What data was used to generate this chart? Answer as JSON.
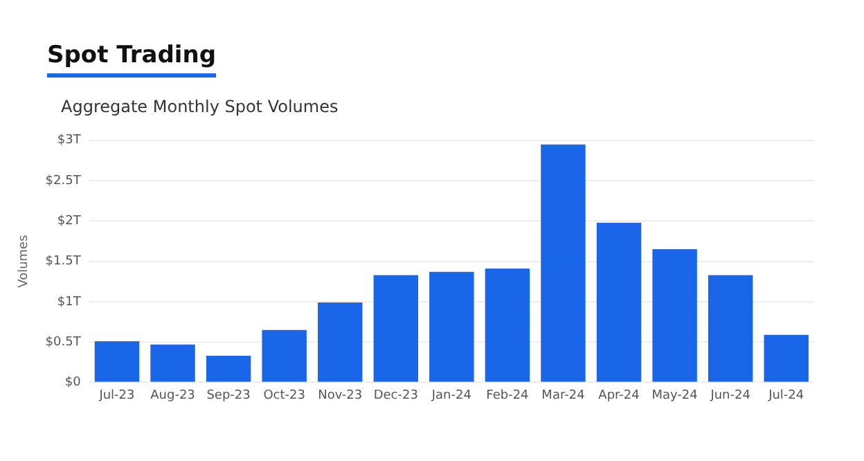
{
  "chart_data": {
    "type": "bar",
    "title": "Spot Trading",
    "subtitle": "Aggregate Monthly Spot Volumes",
    "ylabel": "Volumes",
    "categories": [
      "Jul-23",
      "Aug-23",
      "Sep-23",
      "Oct-23",
      "Nov-23",
      "Dec-23",
      "Jan-24",
      "Feb-24",
      "Mar-24",
      "Apr-24",
      "May-24",
      "Jun-24",
      "Jul-24"
    ],
    "values": [
      0.51,
      0.47,
      0.33,
      0.65,
      0.99,
      1.33,
      1.37,
      1.41,
      2.95,
      1.98,
      1.65,
      1.33,
      0.59
    ],
    "color": "#1a66e8",
    "ylim": [
      0,
      3
    ],
    "yticks": [
      {
        "value": 0,
        "label": "$0"
      },
      {
        "value": 0.5,
        "label": "$0.5T"
      },
      {
        "value": 1,
        "label": "$1T"
      },
      {
        "value": 1.5,
        "label": "$1.5T"
      },
      {
        "value": 2,
        "label": "$2T"
      },
      {
        "value": 2.5,
        "label": "$2.5T"
      },
      {
        "value": 3,
        "label": "$3T"
      }
    ],
    "grid": "y"
  }
}
